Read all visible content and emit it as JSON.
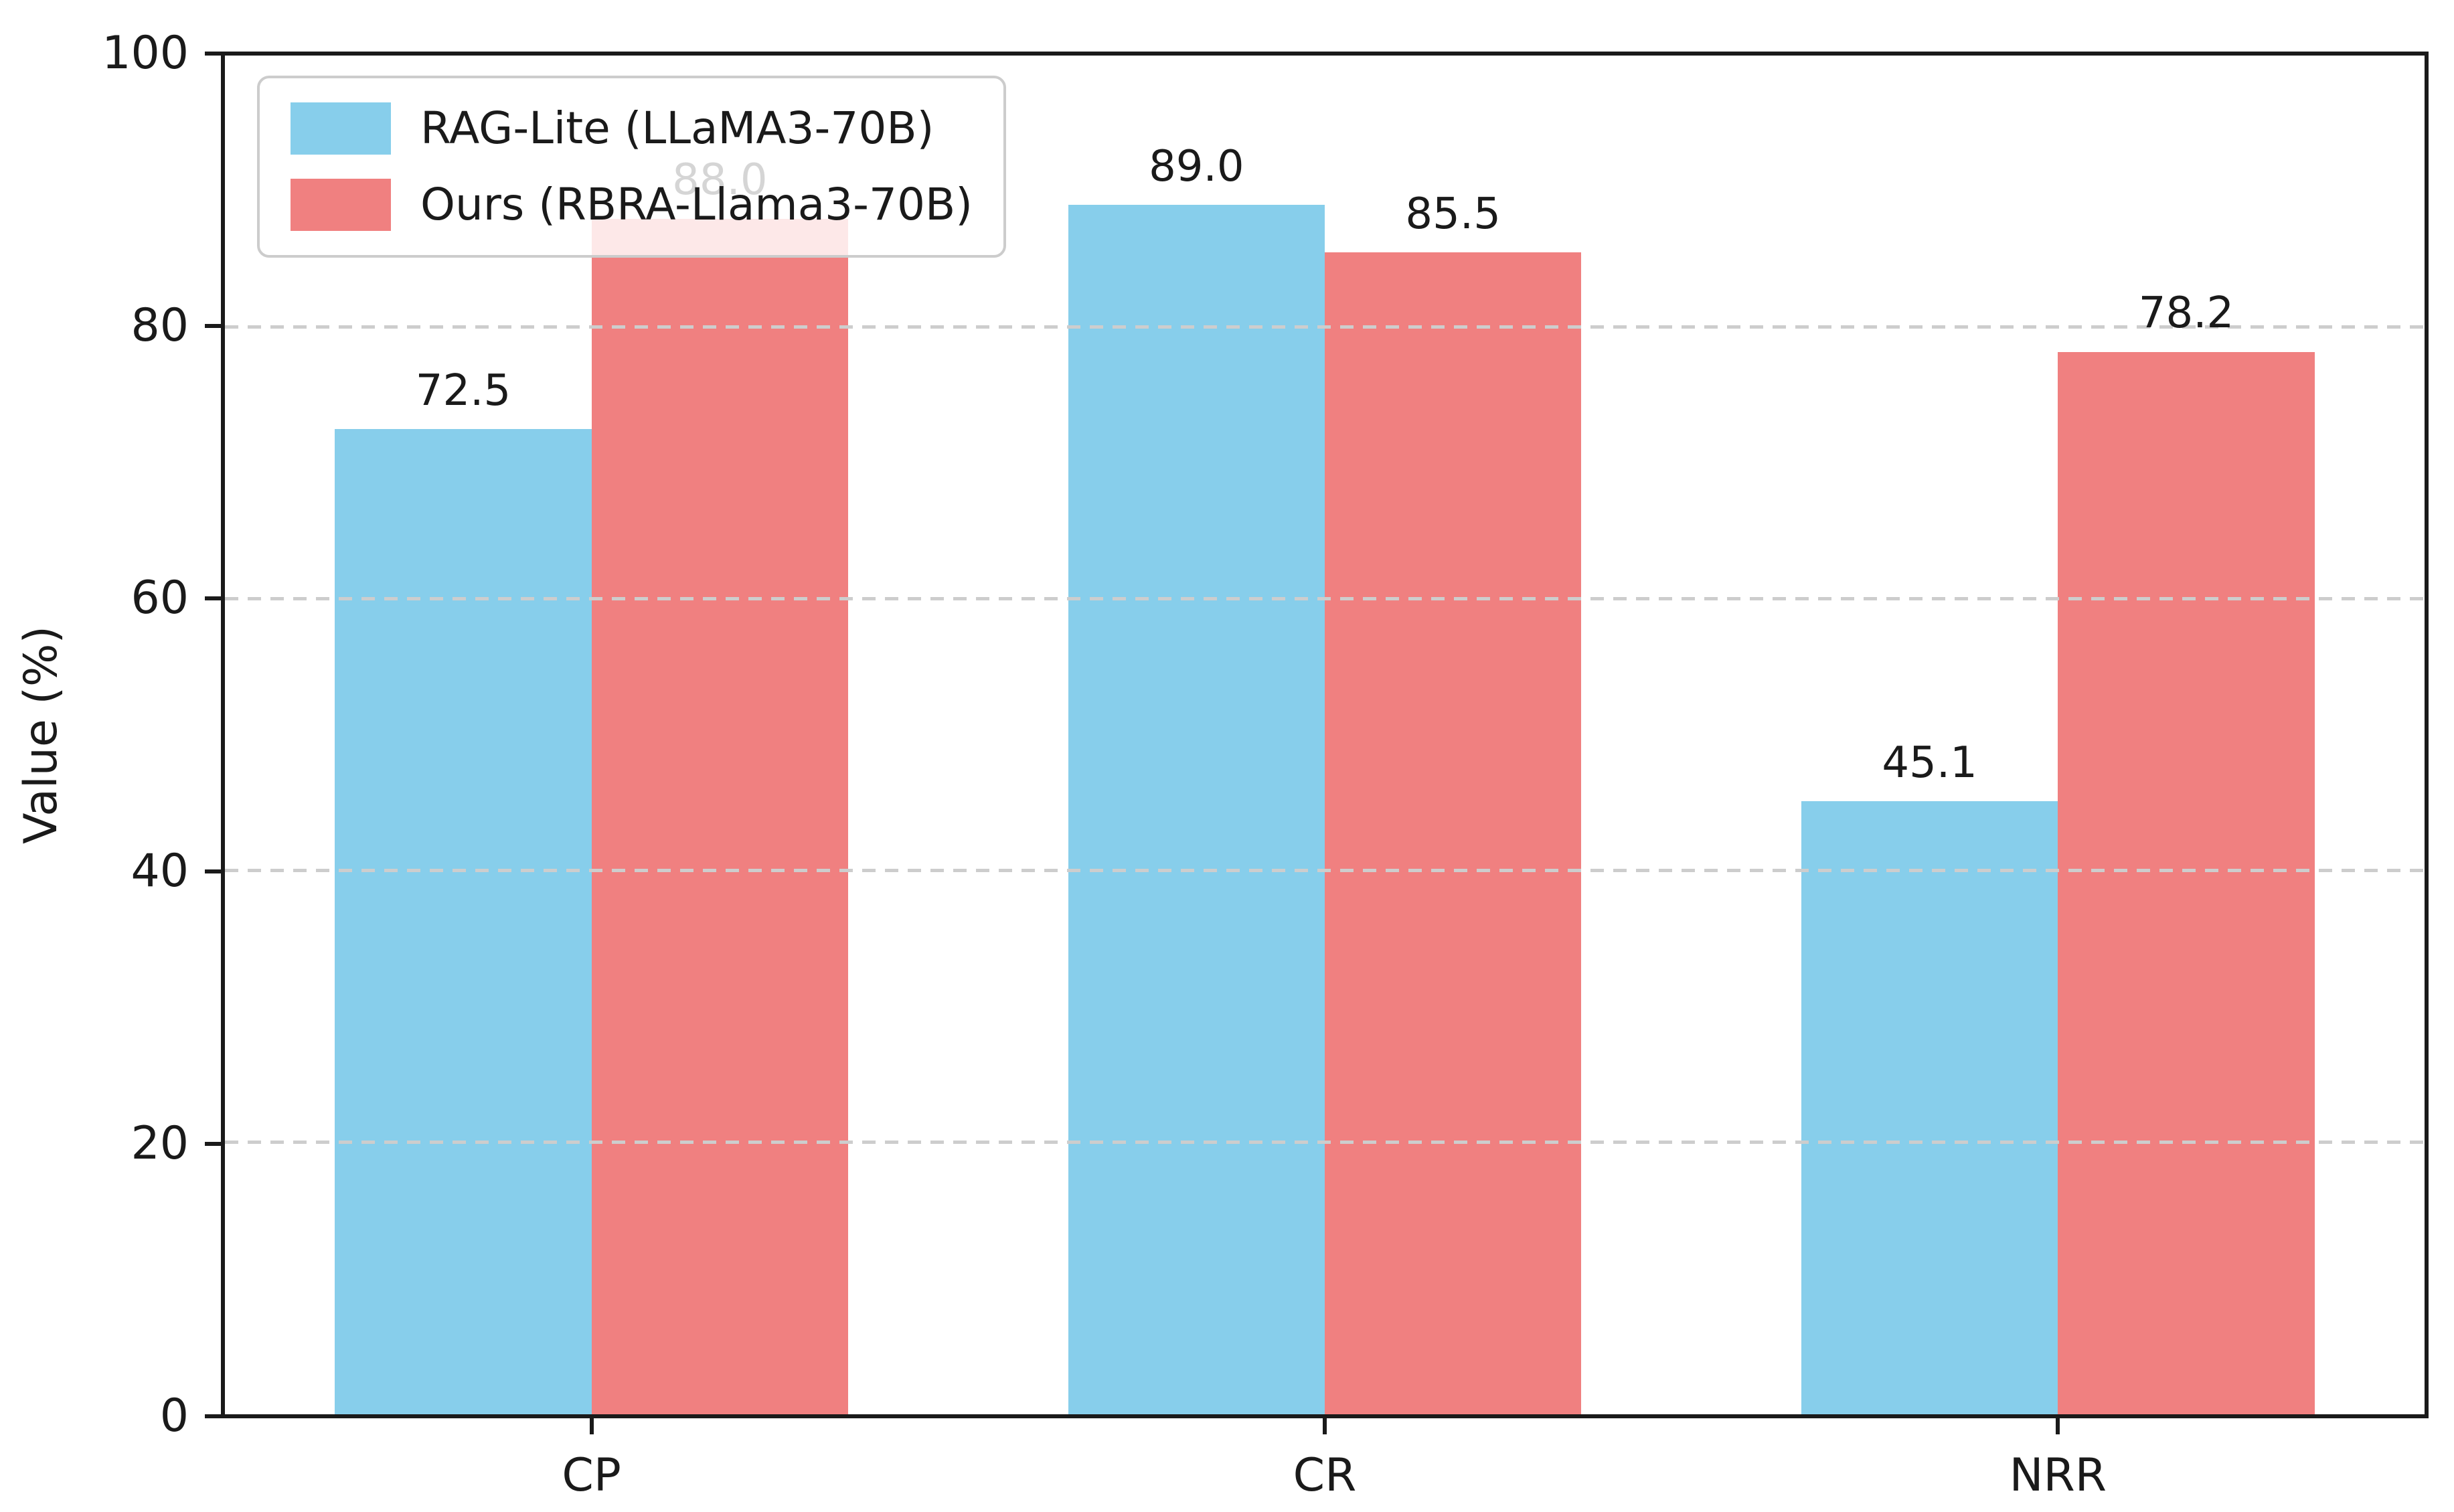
{
  "chart_data": {
    "type": "bar",
    "title": "",
    "categories": [
      "CP",
      "CR",
      "NRR"
    ],
    "series": [
      {
        "name": "RAG-Lite (LLaMA3-70B)",
        "color": "#87CEEB",
        "values": [
          72.5,
          89.0,
          45.1
        ]
      },
      {
        "name": "Ours (RBRA-Llama3-70B)",
        "color": "#F08080",
        "values": [
          88.0,
          85.5,
          78.2
        ]
      }
    ],
    "value_labels": [
      [
        "72.5",
        "89.0",
        "45.1"
      ],
      [
        "88.0",
        "85.5",
        "78.2"
      ]
    ],
    "xlabel": "",
    "ylabel": "Value (%)",
    "ylim": [
      0,
      100
    ],
    "yticks": [
      "0",
      "20",
      "40",
      "60",
      "80",
      "100"
    ],
    "bar_width_fraction": 0.35,
    "grid": {
      "axis": "y",
      "style": "dashed",
      "over_bars": true
    },
    "legend_position": "upper-left"
  },
  "colors": {
    "background": "#ffffff",
    "text": "#1a1a1a",
    "spine": "#1a1a1a",
    "grid": "#cdcdcd",
    "legend_border": "#cccccc",
    "legend_background": "rgba(255,255,255,0.82)",
    "series_blue": "#87CEEB",
    "series_red": "#F08080"
  }
}
